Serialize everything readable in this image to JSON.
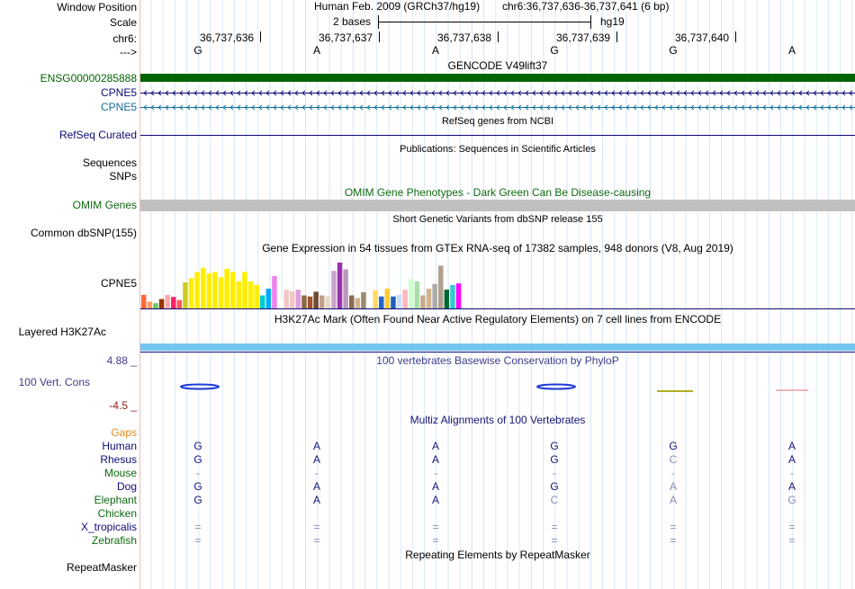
{
  "labels": {
    "window_position": "Window Position",
    "scale": "Scale",
    "chrom": "chr6:",
    "strand": "--->",
    "gencode_id": "ENSG00000285888",
    "cpne5_a": "CPNE5",
    "cpne5_b": "CPNE5",
    "refseq": "RefSeq Curated",
    "sequences": "Sequences",
    "snps": "SNPs",
    "omim": "OMIM Genes",
    "dbsnp": "Common dbSNP(155)",
    "gtex_gene": "CPNE5",
    "h3k27ac": "Layered H3K27Ac",
    "phylop_max": "4.88 _",
    "phylop_name": "100 Vert. Cons",
    "phylop_min": "-4.5 _",
    "gaps": "Gaps",
    "species": [
      "Human",
      "Rhesus",
      "Mouse",
      "Dog",
      "Elephant",
      "Chicken",
      "X_tropicalis",
      "Zebrafish"
    ],
    "repeatmasker": "RepeatMasker"
  },
  "header": {
    "assembly": "Human Feb. 2009 (GRCh37/hg19)",
    "position": "chr6:36,737,636-36,737,641 (6 bp)",
    "scale_text": "2 bases",
    "scale_db": "hg19",
    "ticks": [
      "36,737,636",
      "36,737,637",
      "36,737,638",
      "36,737,639",
      "36,737,640"
    ],
    "bases": [
      "G",
      "A",
      "A",
      "G",
      "G",
      "A"
    ]
  },
  "tracks": {
    "gencode_title": "GENCODE V49lift37",
    "refseq_title": "RefSeq genes from NCBI",
    "publications_title": "Publications: Sequences in Scientific Articles",
    "omim_title": "OMIM Gene Phenotypes - Dark Green Can Be Disease-causing",
    "dbsnp_title": "Short Genetic Variants from dbSNP release 155",
    "gtex_title": "Gene Expression in 54 tissues from GTEx RNA-seq of 17382 samples, 948 donors (V8, Aug 2019)",
    "h3k27ac_title": "H3K27Ac Mark (Often Found Near Active Regulatory Elements) on 7 cell lines from ENCODE",
    "phylop_title": "100 vertebrates Basewise Conservation by PhyloP",
    "multiz_title": "Multiz Alignments of 100 Vertebrates",
    "repeatmasker_title": "Repeating Elements by RepeatMasker"
  },
  "alignment": [
    [
      "G",
      "A",
      "A",
      "G",
      "G",
      "A"
    ],
    [
      "G",
      "A",
      "A",
      "G",
      "C",
      "A"
    ],
    [
      "-",
      "-",
      "-",
      "-",
      "-",
      "-"
    ],
    [
      "G",
      "A",
      "A",
      "G",
      "A",
      "A"
    ],
    [
      "G",
      "A",
      "A",
      "C",
      "A",
      "G"
    ],
    [
      "",
      "",
      "",
      "",
      "",
      ""
    ],
    [
      "=",
      "=",
      "=",
      "=",
      "=",
      "="
    ],
    [
      "=",
      "=",
      "=",
      "=",
      "=",
      "="
    ]
  ],
  "colors": {
    "gencode": "#006400",
    "cpne5_a": "#0c0c78",
    "cpne5_b": "#12709a",
    "refseq": "#0c0c78",
    "omim": "#c0c0c0",
    "h3k27ac": "#72c7f0",
    "phylop_title": "#3e3e8c",
    "multiz": "#141478",
    "gap_label": "#e48b1a",
    "species_primate": "#0c0c78",
    "species_other": "#106a10"
  },
  "chart_data": {
    "type": "bar",
    "title": "Gene Expression in 54 tissues from GTEx RNA-seq of 17382 samples, 948 donors (V8, Aug 2019)",
    "unit": "relative expression (track max = 1.0)",
    "values": [
      0.26,
      0.13,
      0.1,
      0.18,
      0.26,
      0.22,
      0.16,
      0.5,
      0.58,
      0.7,
      0.78,
      0.67,
      0.7,
      0.6,
      0.76,
      0.7,
      0.52,
      0.7,
      0.52,
      0.45,
      0.25,
      0.38,
      0.62,
      0.18,
      0.36,
      0.33,
      0.36,
      0.25,
      0.23,
      0.32,
      0.25,
      0.23,
      0.72,
      0.88,
      0.75,
      0.25,
      0.2,
      0.31,
      0.18,
      0.35,
      0.23,
      0.38,
      0.23,
      0.26,
      0.36,
      0.56,
      0.52,
      0.25,
      0.38,
      0.47,
      0.82,
      0.36,
      0.45,
      0.48
    ],
    "colors": [
      "#ff6a3a",
      "#ff9c63",
      "#66cc66",
      "#993300",
      "#ffaaaa",
      "#ff2266",
      "#ff5a5a",
      "#cccc22",
      "#ffee00",
      "#ffee00",
      "#ffee00",
      "#ffee00",
      "#ffee00",
      "#ffee00",
      "#ffee00",
      "#ffee00",
      "#ffee00",
      "#ffee00",
      "#ffee00",
      "#ffee00",
      "#00cccc",
      "#00aaff",
      "#ee82ee",
      "#ffffff",
      "#f4c6c6",
      "#f4c6c6",
      "#dda0dd",
      "#8b6c42",
      "#a0522d",
      "#6b4c32",
      "#c0a08c",
      "#e8d4c4",
      "#cca3cc",
      "#9933aa",
      "#bb99bb",
      "#8b6a50",
      "#d2b48c",
      "#9a8a70",
      "#ffffff",
      "#ffd966",
      "#2266cc",
      "#ffcc33",
      "#1f5fbf",
      "#ccddff",
      "#ffb6c1",
      "#ccffcc",
      "#aaddaa",
      "#c8a88c",
      "#d2b48c",
      "#aaaaaa",
      "#b0a090",
      "#006633",
      "#33cccc",
      "#ff00ff"
    ]
  }
}
